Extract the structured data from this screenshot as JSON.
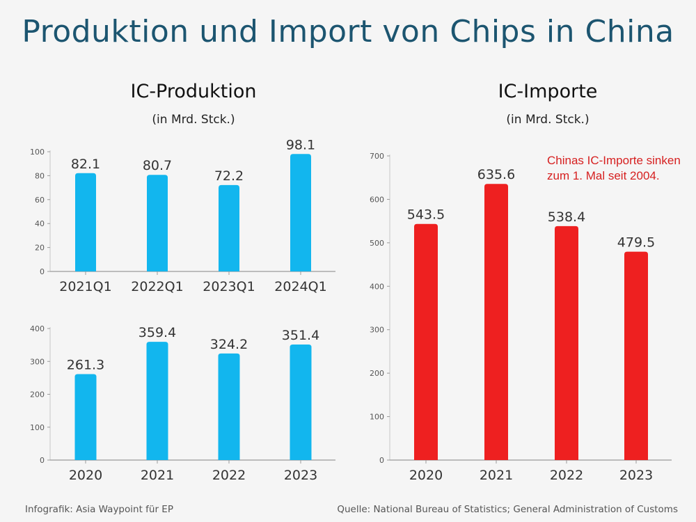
{
  "title": "Produktion und Import von Chips in China",
  "sections": {
    "production": {
      "title": "IC-Produktion",
      "unit": "(in Mrd. Stck.)"
    },
    "imports": {
      "title": "IC-Importe",
      "unit": "(in Mrd. Stck.)"
    }
  },
  "colors": {
    "production": "#12b6ee",
    "imports": "#ee2020",
    "title": "#1c5570"
  },
  "annotation": "Chinas IC-Importe sinken zum 1. Mal seit 2004.",
  "footer": {
    "credit": "Infografik: Asia Waypoint für EP",
    "source": "Quelle: National Bureau of Statistics; General Administration of Customs"
  },
  "chart_data": [
    {
      "id": "production_quarterly",
      "type": "bar",
      "title": "IC-Produktion",
      "ylabel": "(in Mrd. Stck.)",
      "categories": [
        "2021Q1",
        "2022Q1",
        "2023Q1",
        "2024Q1"
      ],
      "values": [
        82.1,
        80.7,
        72.2,
        98.1
      ],
      "labels": [
        "82.1",
        "80.7",
        "72.2",
        "98.1"
      ],
      "ylim": [
        0,
        100
      ],
      "yticks": [
        0,
        20,
        40,
        60,
        80,
        100
      ]
    },
    {
      "id": "production_annual",
      "type": "bar",
      "title": "IC-Produktion",
      "ylabel": "(in Mrd. Stck.)",
      "categories": [
        "2020",
        "2021",
        "2022",
        "2023"
      ],
      "values": [
        261.3,
        359.4,
        324.2,
        351.4
      ],
      "labels": [
        "261.3",
        "359.4",
        "324.2",
        "351.4"
      ],
      "ylim": [
        0,
        400
      ],
      "yticks": [
        0,
        100,
        200,
        300,
        400
      ]
    },
    {
      "id": "imports_annual",
      "type": "bar",
      "title": "IC-Importe",
      "ylabel": "(in Mrd. Stck.)",
      "categories": [
        "2020",
        "2021",
        "2022",
        "2023"
      ],
      "values": [
        543.5,
        635.6,
        538.4,
        479.5
      ],
      "labels": [
        "543.5",
        "635.6",
        "538.4",
        "479.5"
      ],
      "ylim": [
        0,
        700
      ],
      "yticks": [
        0,
        100,
        200,
        300,
        400,
        500,
        600,
        700
      ]
    }
  ]
}
